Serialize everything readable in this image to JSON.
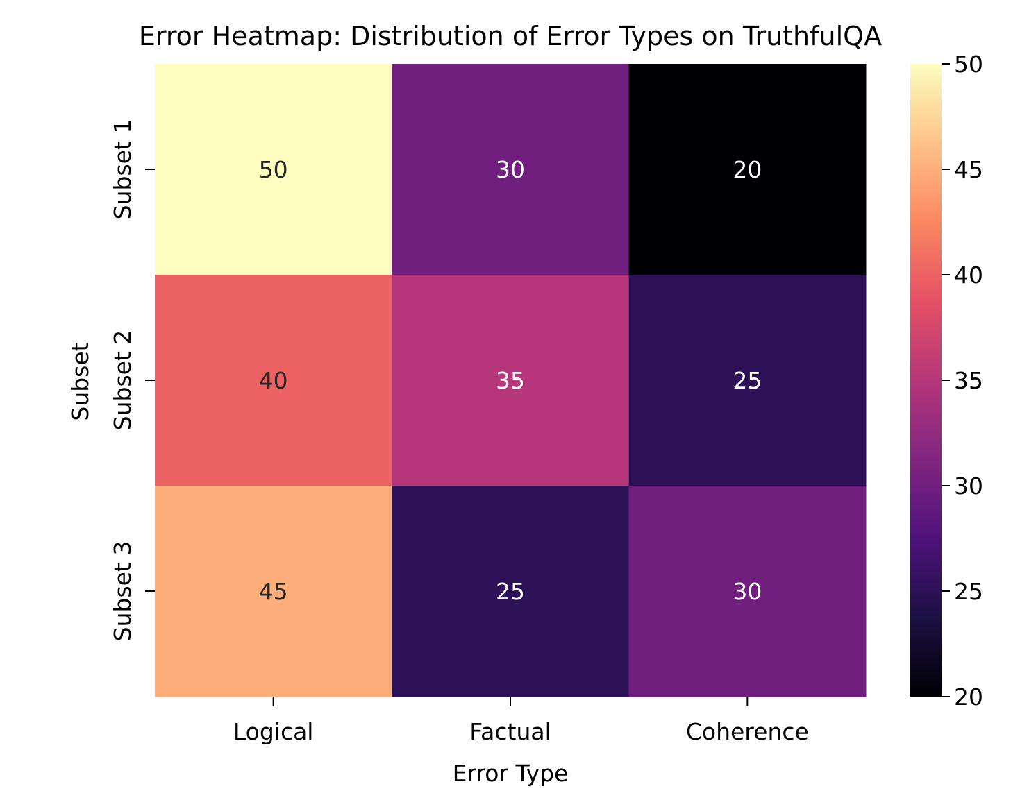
{
  "chart_data": {
    "type": "heatmap",
    "title": "Error Heatmap: Distribution of Error Types on TruthfulQA",
    "xlabel": "Error Type",
    "ylabel": "Subset",
    "x_categories": [
      "Logical",
      "Factual",
      "Coherence"
    ],
    "y_categories": [
      "Subset 1",
      "Subset 2",
      "Subset 3"
    ],
    "values": [
      [
        50,
        30,
        20
      ],
      [
        40,
        35,
        25
      ],
      [
        45,
        25,
        30
      ]
    ],
    "colormap": "magma",
    "colorbar": {
      "range": [
        20,
        50
      ],
      "ticks": [
        "20",
        "25",
        "30",
        "35",
        "40",
        "45",
        "50"
      ]
    },
    "annotate": true
  }
}
